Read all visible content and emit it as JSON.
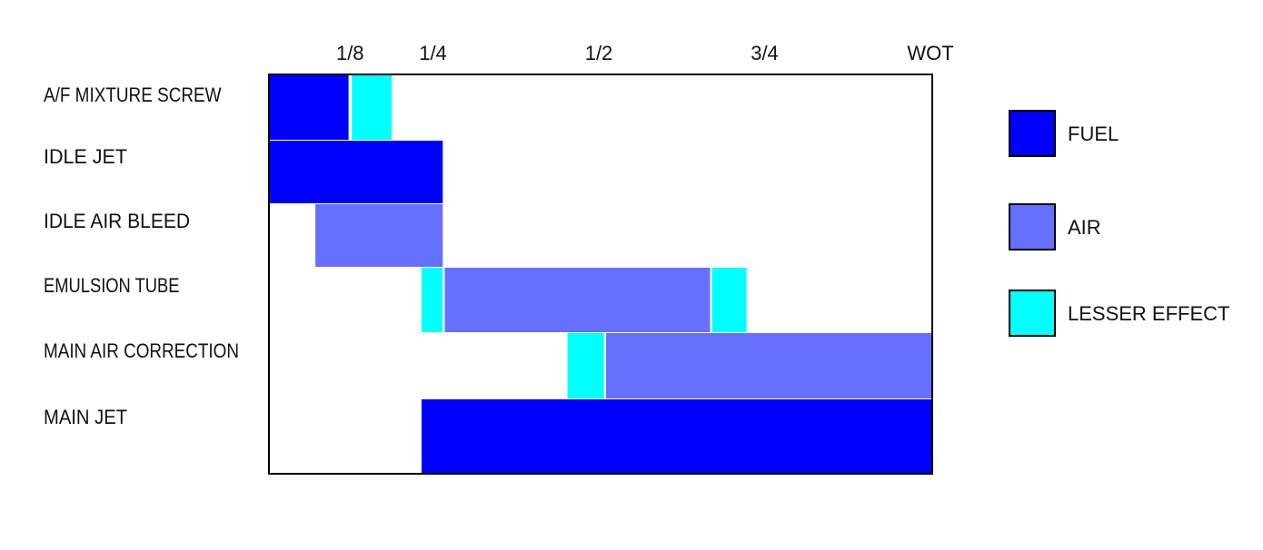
{
  "chart_data": {
    "type": "bar",
    "x_ticks": [
      {
        "label": "1/8",
        "value": 0.125
      },
      {
        "label": "1/4",
        "value": 0.25
      },
      {
        "label": "1/2",
        "value": 0.5
      },
      {
        "label": "3/4",
        "value": 0.75
      },
      {
        "label": "WOT",
        "value": 1.0
      }
    ],
    "xlim": [
      0,
      1
    ],
    "categories": [
      "A/F MIXTURE SCREW",
      "IDLE JET",
      "IDLE AIR BLEED",
      "EMULSION TUBE",
      "MAIN AIR CORRECTION",
      "MAIN JET"
    ],
    "segments": [
      [
        {
          "kind": "fuel",
          "start": 0.0,
          "end": 0.12
        },
        {
          "kind": "lesser",
          "start": 0.125,
          "end": 0.185
        }
      ],
      [
        {
          "kind": "fuel",
          "start": 0.0,
          "end": 0.262
        }
      ],
      [
        {
          "kind": "air",
          "start": 0.07,
          "end": 0.262
        }
      ],
      [
        {
          "kind": "lesser",
          "start": 0.23,
          "end": 0.262
        },
        {
          "kind": "air",
          "start": 0.265,
          "end": 0.665
        },
        {
          "kind": "lesser",
          "start": 0.668,
          "end": 0.72
        }
      ],
      [
        {
          "kind": "lesser",
          "start": 0.45,
          "end": 0.505
        },
        {
          "kind": "air",
          "start": 0.508,
          "end": 1.0
        }
      ],
      [
        {
          "kind": "fuel",
          "start": 0.23,
          "end": 1.0
        }
      ]
    ],
    "legend": [
      {
        "key": "fuel",
        "label": "FUEL",
        "color": "#0000ff"
      },
      {
        "key": "air",
        "label": "AIR",
        "color": "#6670ff"
      },
      {
        "key": "lesser",
        "label": "LESSER EFFECT",
        "color": "#00ffff"
      }
    ],
    "legend_position": "right",
    "grid": false
  }
}
